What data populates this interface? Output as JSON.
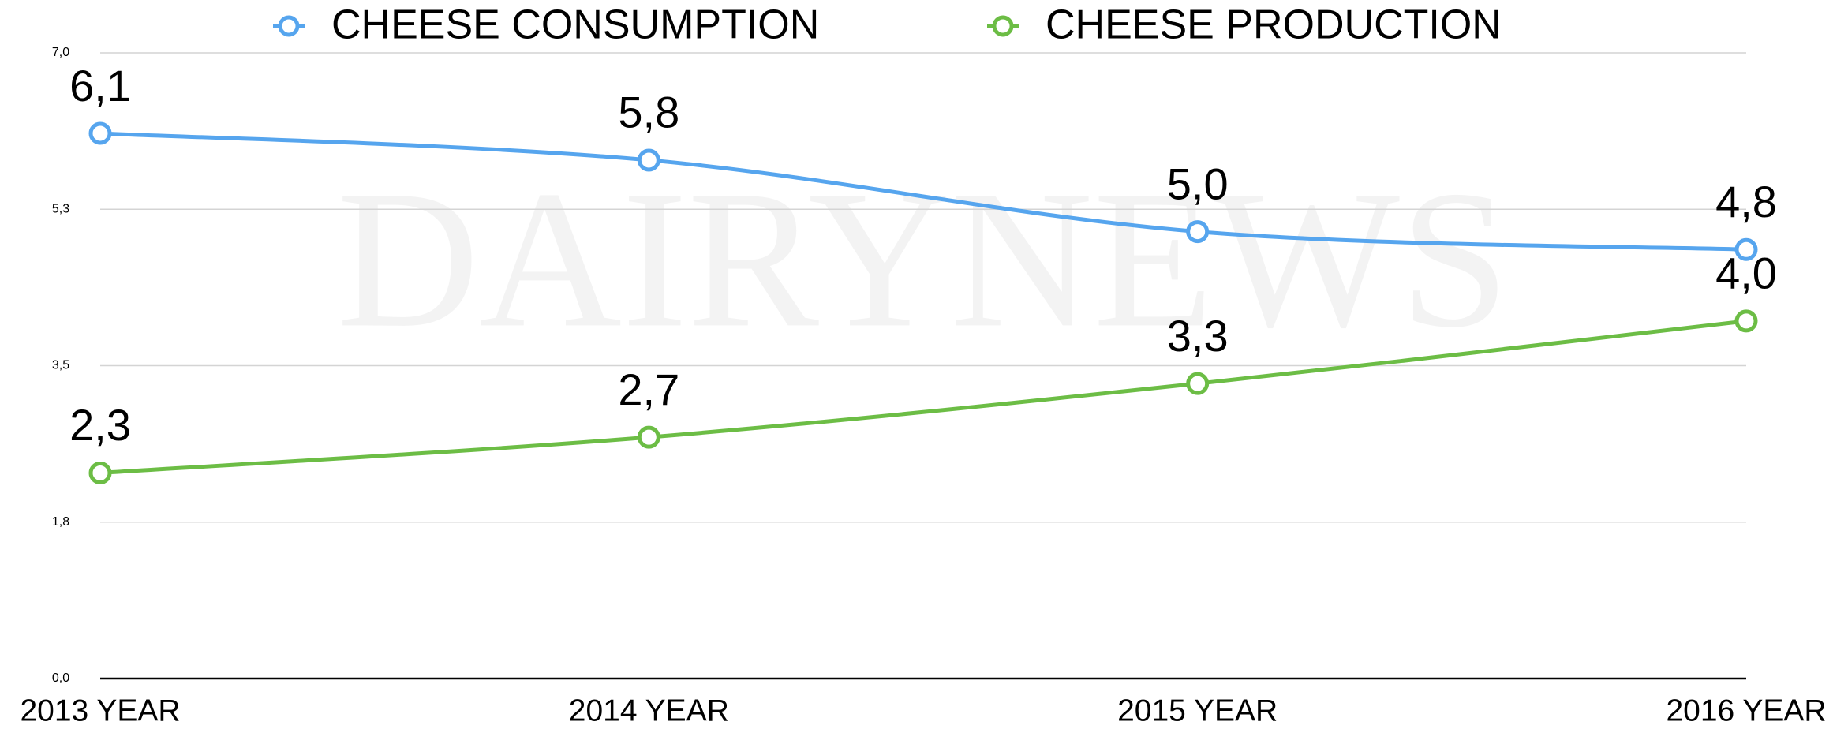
{
  "chart_data": {
    "type": "line",
    "watermark": "DAIRYNEWS",
    "categories": [
      "2013 YEAR",
      "2014 YEAR",
      "2015 YEAR",
      "2016 YEAR"
    ],
    "series": [
      {
        "name": "CHEESE CONSUMPTION",
        "color": "#56a5ee",
        "values": [
          6.1,
          5.8,
          5.0,
          4.8
        ],
        "value_labels": [
          "6,1",
          "5,8",
          "5,0",
          "4,8"
        ]
      },
      {
        "name": "CHEESE PRODUCTION",
        "color": "#6cbd45",
        "values": [
          2.3,
          2.7,
          3.3,
          4.0
        ],
        "value_labels": [
          "2,3",
          "2,7",
          "3,3",
          "4,0"
        ]
      }
    ],
    "ylim": [
      0,
      7
    ],
    "yticks": [
      {
        "value": 0,
        "label": "0,0"
      },
      {
        "value": 1.75,
        "label": "1,8"
      },
      {
        "value": 3.5,
        "label": "3,5"
      },
      {
        "value": 5.25,
        "label": "5,3"
      },
      {
        "value": 7,
        "label": "7,0"
      }
    ],
    "grid": true,
    "smooth": true,
    "legend": "top"
  }
}
